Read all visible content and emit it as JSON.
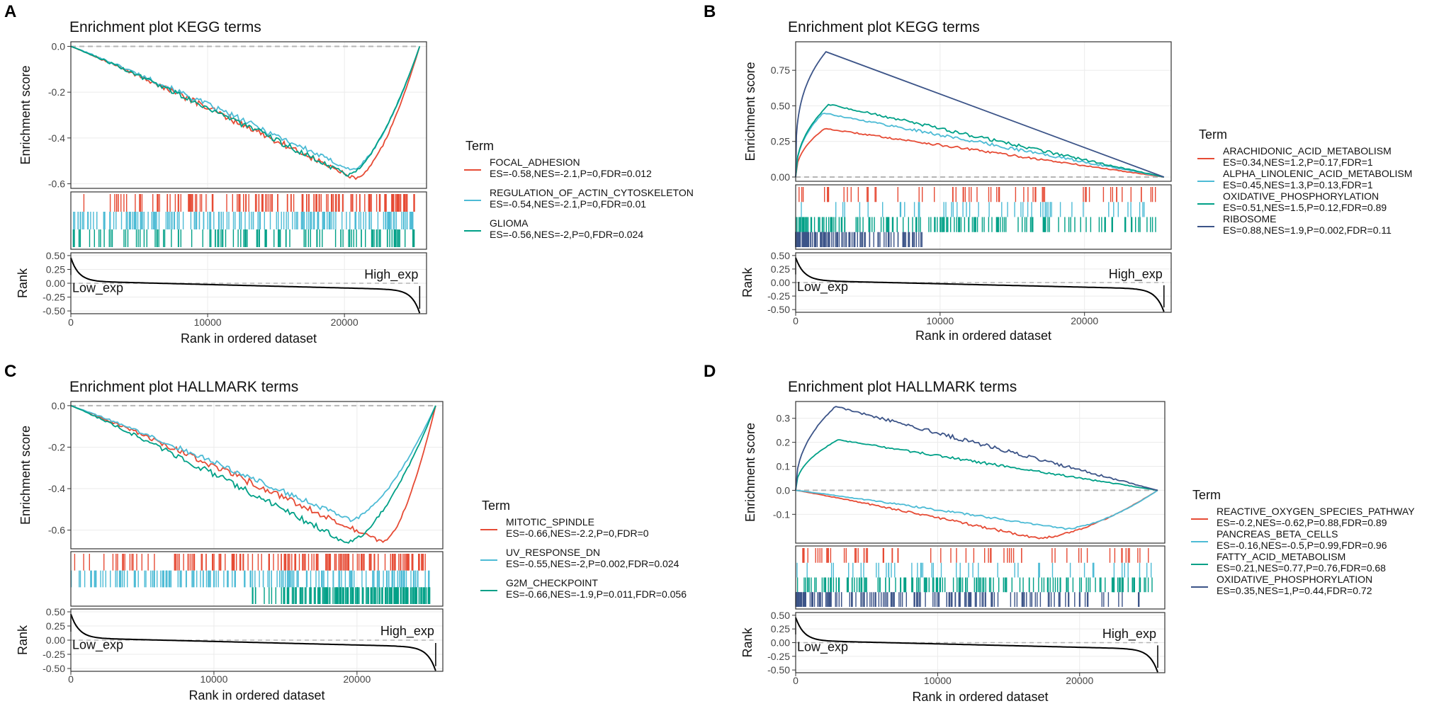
{
  "colors": {
    "red": "#e64b35",
    "lightblue": "#4dbbd5",
    "teal": "#00a087",
    "navy": "#3c5488"
  },
  "chart_data": [
    {
      "panel_letter": "A",
      "type": "line",
      "title": "Enrichment plot KEGG terms",
      "xlabel": "Rank in ordered dataset",
      "ylabel": "Enrichment score",
      "rank_ylabel": "Rank",
      "xlim": [
        0,
        26000
      ],
      "x_ticks": [
        0,
        10000,
        20000
      ],
      "x_tick_labels": [
        "0",
        "10000",
        "20000"
      ],
      "ylim": [
        -0.62,
        0.02
      ],
      "y_ticks": [
        0.0,
        -0.2,
        -0.4,
        -0.6
      ],
      "y_tick_labels": [
        "0.0",
        "-0.2",
        "-0.4",
        "-0.6"
      ],
      "rank_ylim": [
        -0.55,
        0.55
      ],
      "rank_ticks": [
        0.5,
        0.25,
        0.0,
        -0.25,
        -0.5
      ],
      "rank_tick_labels": [
        "0.50",
        "0.25",
        "0.00",
        "-0.25",
        "-0.50"
      ],
      "low_label": "Low_exp",
      "high_label": "High_exp",
      "legend_title": "Term",
      "series": [
        {
          "name": "FOCAL_ADHESION",
          "stats": "ES=-0.58,NES=-2.1,P=0,FDR=0.012",
          "color": "#e64b35",
          "es": -0.58,
          "peak_x": 20800,
          "hit_pattern": "back_heavy",
          "hit_density": 0.7
        },
        {
          "name": "REGULATION_OF_ACTIN_CYTOSKELETON",
          "stats": "ES=-0.54,NES=-2.1,P=0,FDR=0.01",
          "color": "#4dbbd5",
          "es": -0.54,
          "peak_x": 20500,
          "hit_pattern": "dense",
          "hit_density": 1.0
        },
        {
          "name": "GLIOMA",
          "stats": "ES=-0.56,NES=-2,P=0,FDR=0.024",
          "color": "#00a087",
          "es": -0.56,
          "peak_x": 20200,
          "hit_pattern": "uniform",
          "hit_density": 0.45
        }
      ]
    },
    {
      "panel_letter": "B",
      "type": "line",
      "title": "Enrichment plot KEGG terms",
      "xlabel": "Rank in ordered dataset",
      "ylabel": "Enrichment score",
      "rank_ylabel": "Rank",
      "xlim": [
        0,
        26000
      ],
      "x_ticks": [
        0,
        10000,
        20000
      ],
      "x_tick_labels": [
        "0",
        "10000",
        "20000"
      ],
      "ylim": [
        -0.03,
        0.95
      ],
      "y_ticks": [
        0.75,
        0.5,
        0.25,
        0.0
      ],
      "y_tick_labels": [
        "0.75",
        "0.50",
        "0.25",
        "0.00"
      ],
      "rank_ylim": [
        -0.55,
        0.55
      ],
      "rank_ticks": [
        0.5,
        0.25,
        0.0,
        -0.25,
        -0.5
      ],
      "rank_tick_labels": [
        "0.50",
        "0.25",
        "0.00",
        "-0.25",
        "-0.50"
      ],
      "low_label": "Low_exp",
      "high_label": "High_exp",
      "legend_title": "Term",
      "series": [
        {
          "name": "ARACHIDONIC_ACID_METABOLISM",
          "stats": "ES=0.34,NES=1.2,P=0.17,FDR=1",
          "color": "#e64b35",
          "es": 0.34,
          "peak_x": 2000,
          "hit_pattern": "sparse",
          "hit_density": 0.35
        },
        {
          "name": "ALPHA_LINOLENIC_ACID_METABOLISM",
          "stats": "ES=0.45,NES=1.3,P=0.13,FDR=1",
          "color": "#4dbbd5",
          "es": 0.45,
          "peak_x": 1900,
          "hit_pattern": "sparse",
          "hit_density": 0.25
        },
        {
          "name": "OXIDATIVE_PHOSPHORYLATION",
          "stats": "ES=0.51,NES=1.5,P=0.12,FDR=0.89",
          "color": "#00a087",
          "es": 0.51,
          "peak_x": 2300,
          "hit_pattern": "front_heavy",
          "hit_density": 0.8
        },
        {
          "name": "RIBOSOME",
          "stats": "ES=0.88,NES=1.9,P=0.002,FDR=0.11",
          "color": "#3c5488",
          "es": 0.88,
          "peak_x": 2100,
          "hit_pattern": "very_front",
          "hit_density": 1.0
        }
      ]
    },
    {
      "panel_letter": "C",
      "type": "line",
      "title": "Enrichment plot HALLMARK terms",
      "xlabel": "Rank in ordered dataset",
      "ylabel": "Enrichment score",
      "rank_ylabel": "Rank",
      "xlim": [
        0,
        26000
      ],
      "x_ticks": [
        0,
        10000,
        20000
      ],
      "x_tick_labels": [
        "0",
        "10000",
        "20000"
      ],
      "ylim": [
        -0.69,
        0.02
      ],
      "y_ticks": [
        0.0,
        -0.2,
        -0.4,
        -0.6
      ],
      "y_tick_labels": [
        "0.0",
        "-0.2",
        "-0.4",
        "-0.6"
      ],
      "rank_ylim": [
        -0.55,
        0.55
      ],
      "rank_ticks": [
        0.5,
        0.25,
        0.0,
        -0.25,
        -0.5
      ],
      "rank_tick_labels": [
        "0.50",
        "0.25",
        "0.00",
        "-0.25",
        "-0.50"
      ],
      "low_label": "Low_exp",
      "high_label": "High_exp",
      "legend_title": "Term",
      "series": [
        {
          "name": "MITOTIC_SPINDLE",
          "stats": "ES=-0.66,NES=-2.2,P=0,FDR=0",
          "color": "#e64b35",
          "es": -0.66,
          "peak_x": 21800,
          "hit_pattern": "back_heavy",
          "hit_density": 0.8
        },
        {
          "name": "UV_RESPONSE_DN",
          "stats": "ES=-0.55,NES=-2,P=0.002,FDR=0.024",
          "color": "#4dbbd5",
          "es": -0.55,
          "peak_x": 19500,
          "hit_pattern": "dense",
          "hit_density": 0.9
        },
        {
          "name": "G2M_CHECKPOINT",
          "stats": "ES=-0.66,NES=-1.9,P=0.011,FDR=0.056",
          "color": "#00a087",
          "es": -0.66,
          "peak_x": 19300,
          "hit_pattern": "very_back",
          "hit_density": 1.0
        }
      ]
    },
    {
      "panel_letter": "D",
      "type": "line",
      "title": "Enrichment plot HALLMARK terms",
      "xlabel": "Rank in ordered dataset",
      "ylabel": "Enrichment score",
      "rank_ylabel": "Rank",
      "xlim": [
        0,
        26000
      ],
      "x_ticks": [
        0,
        10000,
        20000
      ],
      "x_tick_labels": [
        "0",
        "10000",
        "20000"
      ],
      "ylim": [
        -0.22,
        0.37
      ],
      "y_ticks": [
        0.3,
        0.2,
        0.1,
        0.0,
        -0.1
      ],
      "y_tick_labels": [
        "0.3",
        "0.2",
        "0.1",
        "0.0",
        "-0.1"
      ],
      "rank_ylim": [
        -0.55,
        0.55
      ],
      "rank_ticks": [
        0.5,
        0.25,
        0.0,
        -0.25,
        -0.5
      ],
      "rank_tick_labels": [
        "0.50",
        "0.25",
        "0.00",
        "-0.25",
        "-0.50"
      ],
      "low_label": "Low_exp",
      "high_label": "High_exp",
      "legend_title": "Term",
      "series": [
        {
          "name": "REACTIVE_OXYGEN_SPECIES_PATHWAY",
          "stats": "ES=-0.2,NES=-0.62,P=0.88,FDR=0.89",
          "color": "#e64b35",
          "es": -0.2,
          "peak_x": 17000,
          "hit_pattern": "sparse",
          "hit_density": 0.4
        },
        {
          "name": "PANCREAS_BETA_CELLS",
          "stats": "ES=-0.16,NES=-0.5,P=0.99,FDR=0.96",
          "color": "#4dbbd5",
          "es": -0.16,
          "peak_x": 19000,
          "hit_pattern": "sparse",
          "hit_density": 0.35
        },
        {
          "name": "FATTY_ACID_METABOLISM",
          "stats": "ES=0.21,NES=0.77,P=0.76,FDR=0.68",
          "color": "#00a087",
          "es": 0.21,
          "peak_x": 3000,
          "hit_pattern": "uniform",
          "hit_density": 0.85
        },
        {
          "name": "OXIDATIVE_PHOSPHORYLATION",
          "stats": "ES=0.35,NES=1,P=0.44,FDR=0.72",
          "color": "#3c5488",
          "es": 0.35,
          "peak_x": 2800,
          "hit_pattern": "front_heavy",
          "hit_density": 0.95
        }
      ]
    }
  ]
}
